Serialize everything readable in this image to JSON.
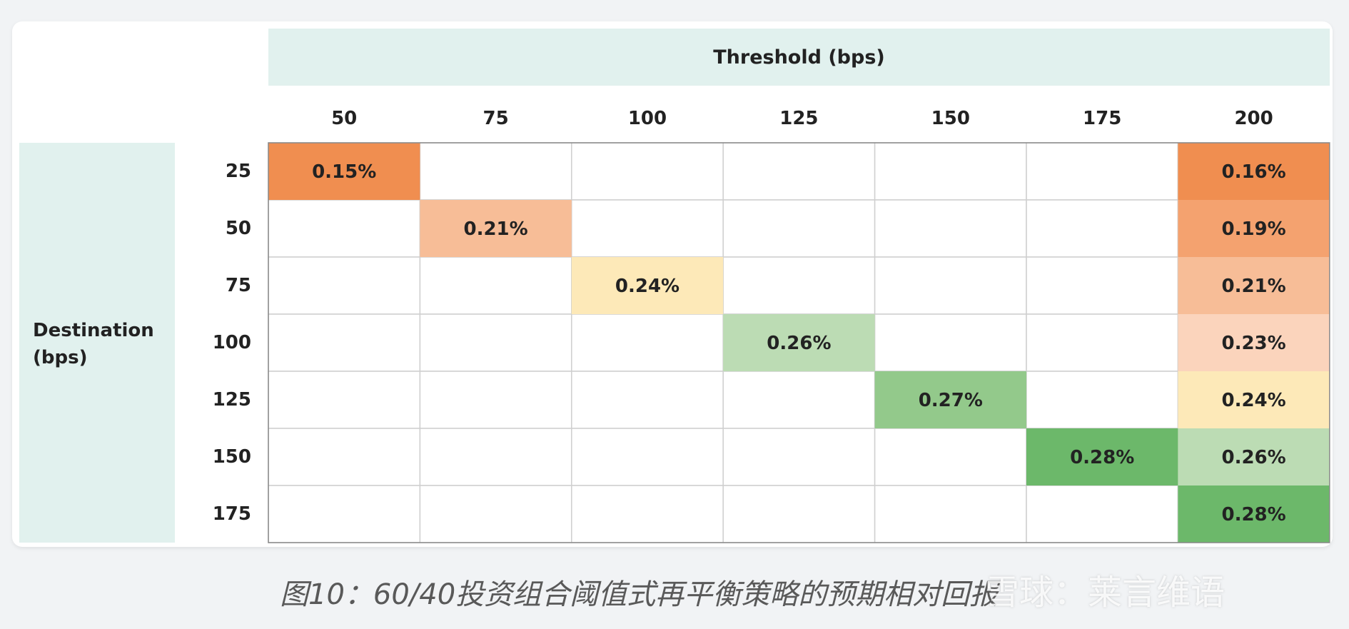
{
  "chart_data": {
    "type": "heatmap",
    "title": "Threshold (bps)",
    "xlabel": "Threshold (bps)",
    "ylabel": [
      "Destination",
      "(bps)"
    ],
    "x_categories": [
      "50",
      "75",
      "100",
      "125",
      "150",
      "175",
      "200"
    ],
    "y_categories": [
      "25",
      "50",
      "75",
      "100",
      "125",
      "150",
      "175"
    ],
    "cells": [
      {
        "row": "25",
        "col": "50",
        "value": 0.15,
        "label": "0.15%",
        "color": "#f08e50"
      },
      {
        "row": "50",
        "col": "75",
        "value": 0.21,
        "label": "0.21%",
        "color": "#f7bd97"
      },
      {
        "row": "75",
        "col": "100",
        "value": 0.24,
        "label": "0.24%",
        "color": "#fde9b8"
      },
      {
        "row": "100",
        "col": "125",
        "value": 0.26,
        "label": "0.26%",
        "color": "#bcdcb4"
      },
      {
        "row": "125",
        "col": "150",
        "value": 0.27,
        "label": "0.27%",
        "color": "#93c98b"
      },
      {
        "row": "150",
        "col": "175",
        "value": 0.28,
        "label": "0.28%",
        "color": "#6cb86a"
      },
      {
        "row": "25",
        "col": "200",
        "value": 0.16,
        "label": "0.16%",
        "color": "#f08e50"
      },
      {
        "row": "50",
        "col": "200",
        "value": 0.19,
        "label": "0.19%",
        "color": "#f4a26f"
      },
      {
        "row": "75",
        "col": "200",
        "value": 0.21,
        "label": "0.21%",
        "color": "#f7bd97"
      },
      {
        "row": "100",
        "col": "200",
        "value": 0.23,
        "label": "0.23%",
        "color": "#fbd4bc"
      },
      {
        "row": "125",
        "col": "200",
        "value": 0.24,
        "label": "0.24%",
        "color": "#fde9b8"
      },
      {
        "row": "150",
        "col": "200",
        "value": 0.26,
        "label": "0.26%",
        "color": "#bcdcb4"
      },
      {
        "row": "175",
        "col": "200",
        "value": 0.28,
        "label": "0.28%",
        "color": "#6cb86a"
      }
    ],
    "empty_color": "#ffffff",
    "grid_color": "#cfcfcf",
    "band_color": "#e1f1ee"
  },
  "caption": "图10：60/40投资组合阈值式再平衡策略的预期相对回报",
  "watermark": "雪球：莱言维语"
}
